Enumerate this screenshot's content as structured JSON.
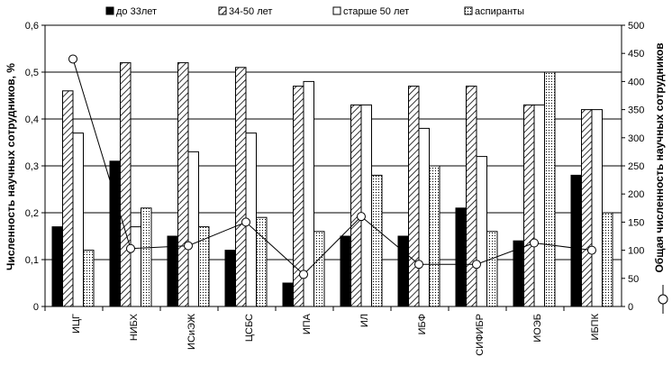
{
  "chart_data": {
    "type": "bar",
    "categories": [
      "ИЦГ",
      "НИБХ",
      "ИСиЭЖ",
      "ЦСБС",
      "ИПА",
      "ИЛ",
      "ИБФ",
      "СИФИБР",
      "ИОЭБ",
      "ИБПК"
    ],
    "series": [
      {
        "name": "до 33лет",
        "values": [
          0.17,
          0.31,
          0.15,
          0.12,
          0.05,
          0.15,
          0.15,
          0.21,
          0.14,
          0.28
        ]
      },
      {
        "name": "34-50 лет",
        "values": [
          0.46,
          0.52,
          0.52,
          0.51,
          0.47,
          0.43,
          0.47,
          0.47,
          0.43,
          0.42
        ]
      },
      {
        "name": "старше 50 лет",
        "values": [
          0.37,
          0.17,
          0.33,
          0.37,
          0.48,
          0.43,
          0.38,
          0.32,
          0.43,
          0.42
        ]
      },
      {
        "name": "аспиранты",
        "values": [
          0.12,
          0.21,
          0.17,
          0.19,
          0.16,
          0.28,
          0.3,
          0.16,
          0.5,
          0.2
        ]
      }
    ],
    "line_series": {
      "name": "Общая численность научных сотрудников",
      "axis": "right",
      "values": [
        440,
        103,
        108,
        150,
        57,
        160,
        75,
        75,
        113,
        100
      ]
    },
    "ylabel": "Численность научных сотрудников, %",
    "ylabel_right": "Общая численность научных сотрудников",
    "ylim": [
      0,
      0.6
    ],
    "yticks": [
      "0",
      "0,1",
      "0,2",
      "0,3",
      "0,4",
      "0,5",
      "0,6"
    ],
    "ylim_right": [
      0,
      500
    ],
    "yticks_right": [
      "0",
      "50",
      "100",
      "150",
      "200",
      "250",
      "300",
      "350",
      "400",
      "450",
      "500"
    ],
    "grid": "horizontal",
    "legend_position": "top",
    "colors": {
      "frame": "#000000",
      "bar_outline": "#000000",
      "dark_bar": "#000000",
      "background": "#ffffff"
    }
  }
}
